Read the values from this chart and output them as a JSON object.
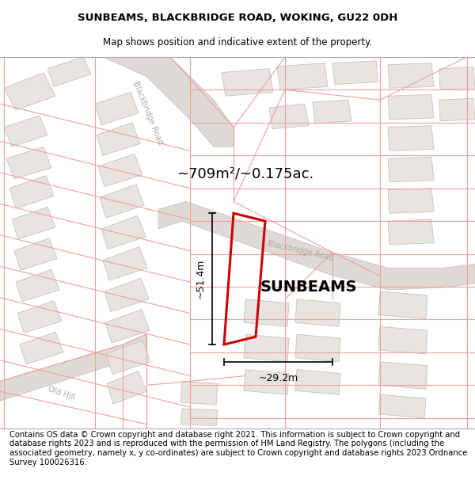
{
  "title": "SUNBEAMS, BLACKBRIDGE ROAD, WOKING, GU22 0DH",
  "subtitle": "Map shows position and indicative extent of the property.",
  "area_label": "~709m²/~0.175ac.",
  "property_name": "SUNBEAMS",
  "dim_width": "~29.2m",
  "dim_height": "~51.4m",
  "footer": "Contains OS data © Crown copyright and database right 2021. This information is subject to Crown copyright and database rights 2023 and is reproduced with the permission of HM Land Registry. The polygons (including the associated geometry, namely x, y co-ordinates) are subject to Crown copyright and database rights 2023 Ordnance Survey 100026316.",
  "title_fontsize": 9.5,
  "subtitle_fontsize": 8.5,
  "footer_fontsize": 7.2,
  "map_bg": "#f9f6f4",
  "building_fill": "#e8e4e0",
  "building_edge": "#c8c2be",
  "road_fill": "#e0dbd8",
  "road_edge": "#c8c2be",
  "red_line": "#f0a0a0",
  "road_label_color": "#b0a8a4",
  "property_outline": "#cc0000"
}
